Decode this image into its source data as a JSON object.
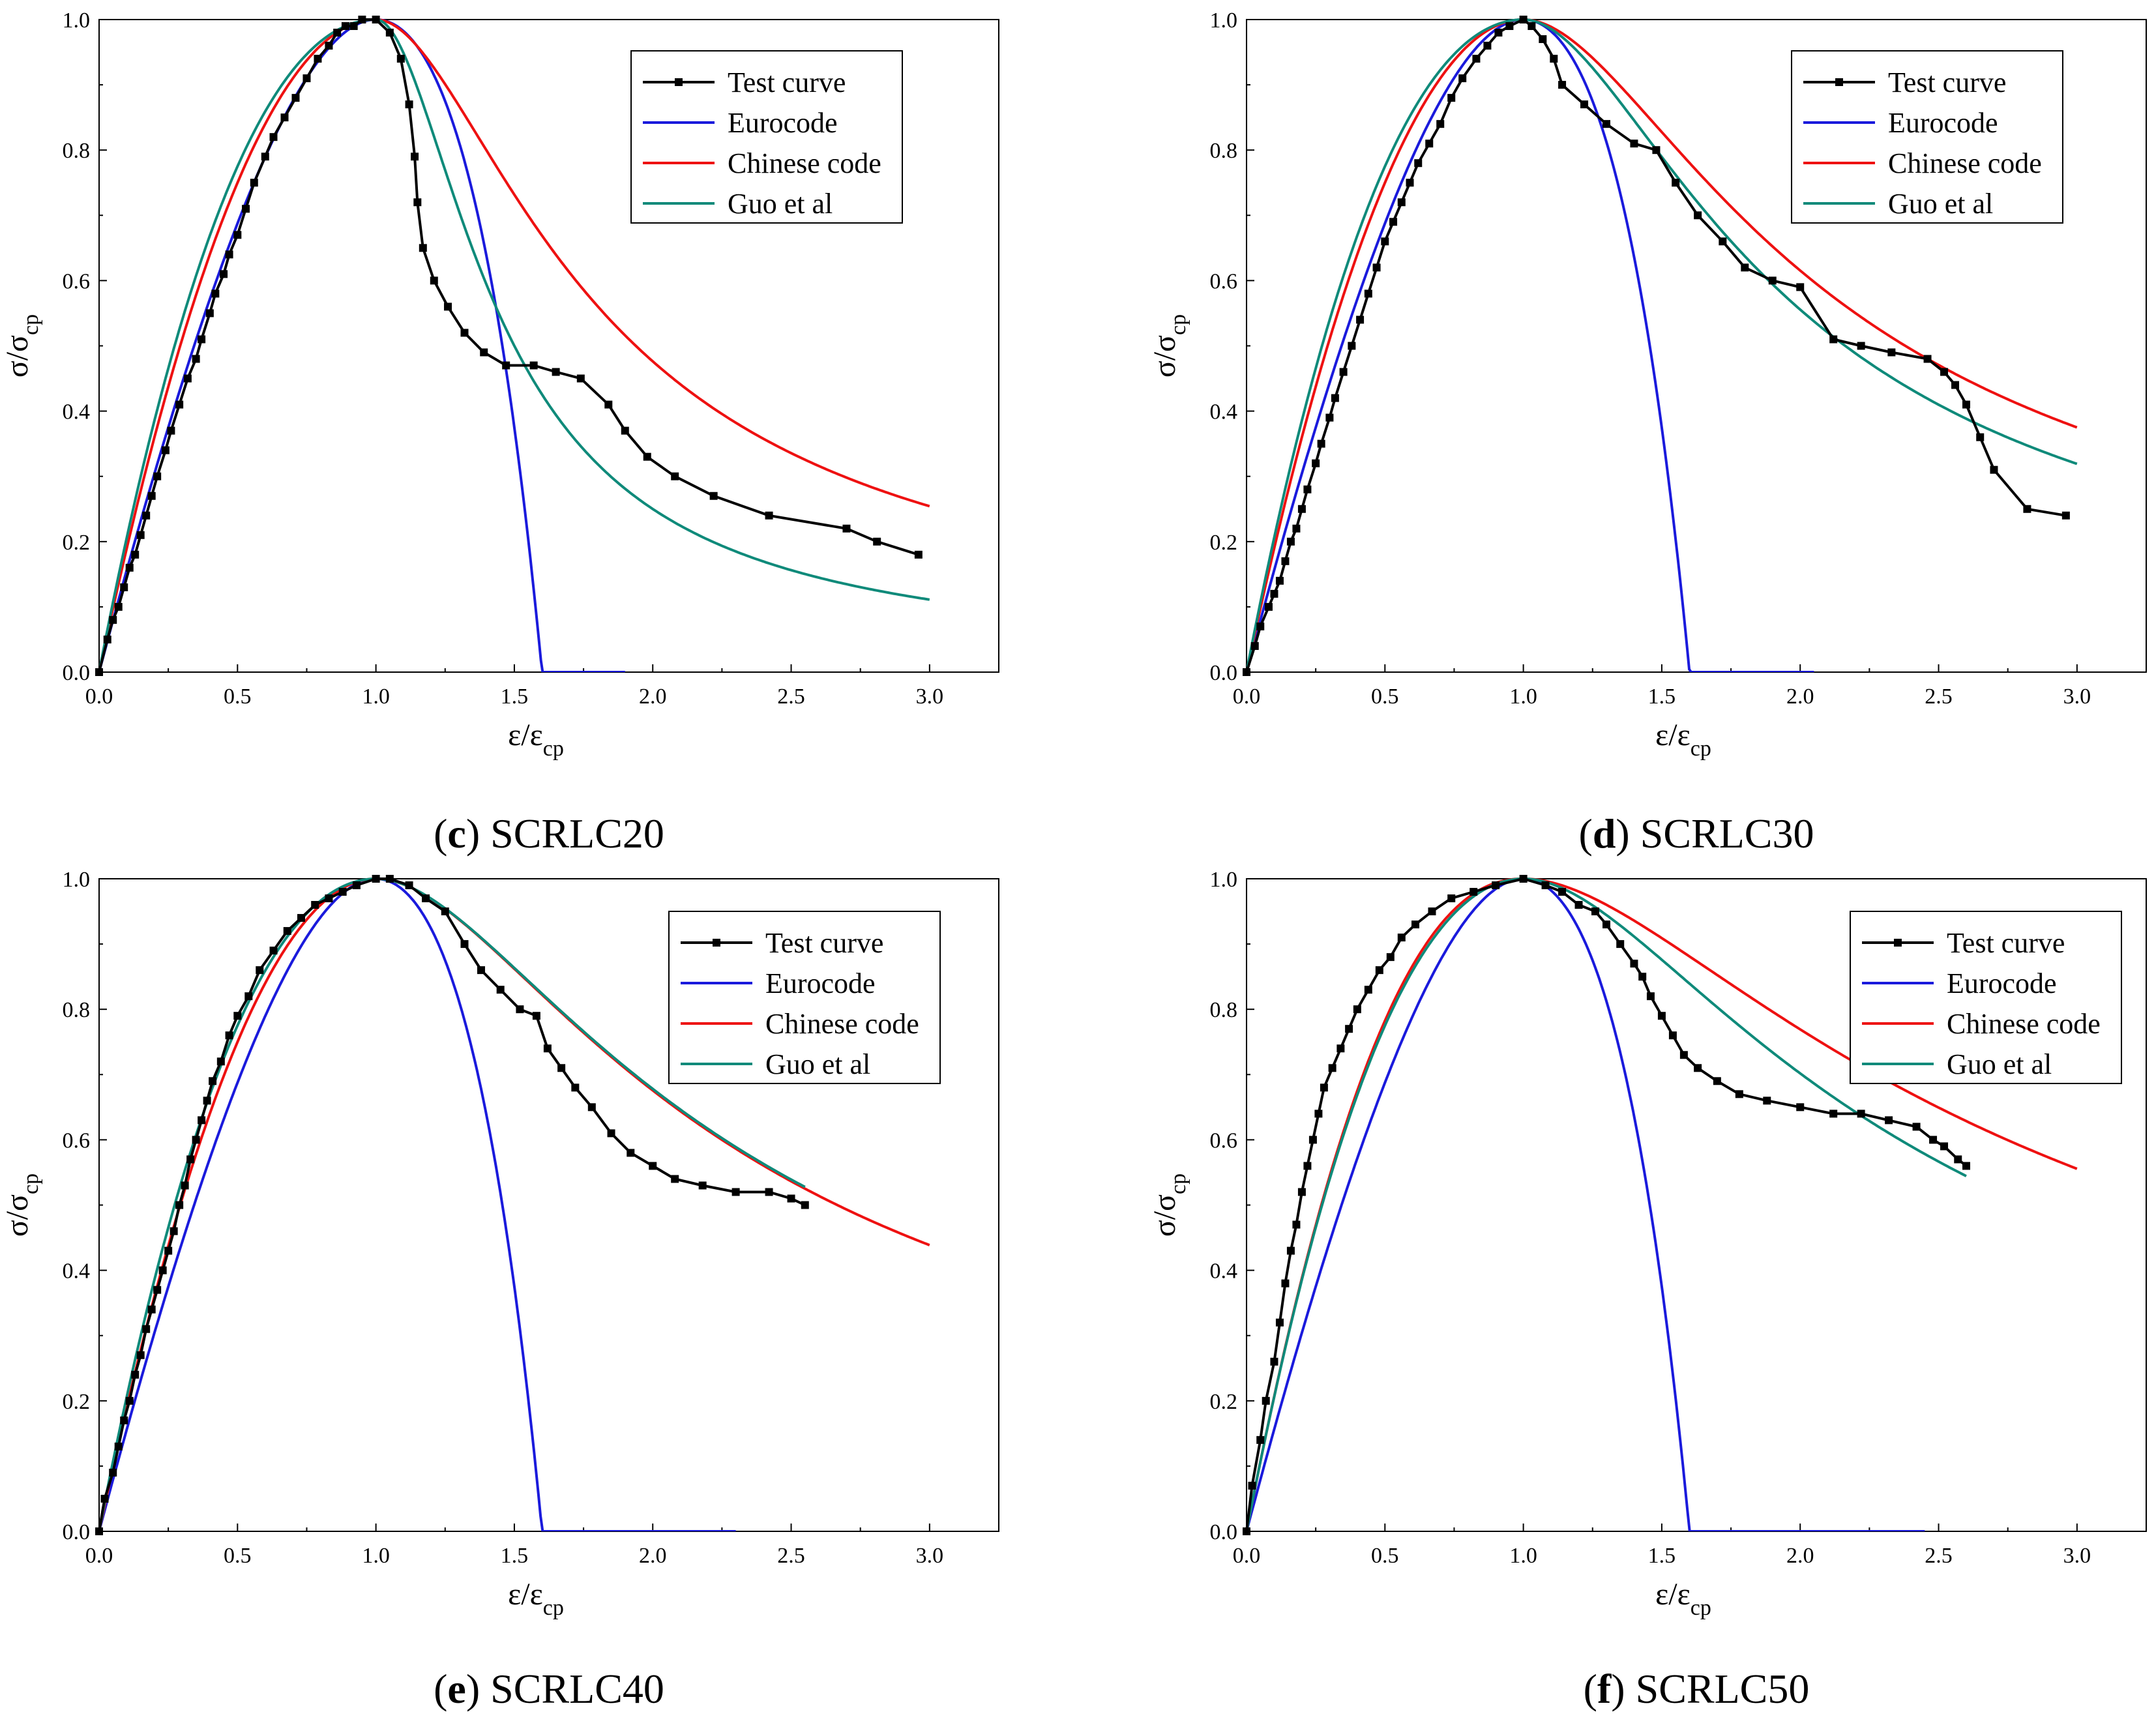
{
  "chart_data": [
    {
      "type": "line",
      "panel": "c",
      "caption_label": "c",
      "caption_text": " SCRLC20",
      "xlabel": "ε/ε",
      "xlabel_sub": "cp",
      "ylabel": "σ/σ",
      "ylabel_sub": "cp",
      "xlim": [
        0,
        3.25
      ],
      "ylim": [
        0,
        1.0
      ],
      "xticks": [
        "0.0",
        "0.5",
        "1.0",
        "1.5",
        "2.0",
        "2.5",
        "3.0"
      ],
      "yticks": [
        "0.0",
        "0.2",
        "0.4",
        "0.6",
        "0.8",
        "1.0"
      ],
      "legend": [
        "Test curve",
        "Eurocode",
        "Chinese code",
        "Guo  et al"
      ],
      "legend_position": "top-right",
      "model_params": {
        "k": 1.6,
        "n_cn": 2.0,
        "alpha_cn": 2.2,
        "alpha_guo": 6.0
      },
      "x_end": {
        "eurocode": 1.9,
        "chinese": 3.0,
        "guo": 3.0
      },
      "test_curve": [
        [
          0,
          0
        ],
        [
          0.03,
          0.05
        ],
        [
          0.05,
          0.08
        ],
        [
          0.07,
          0.1
        ],
        [
          0.09,
          0.13
        ],
        [
          0.11,
          0.16
        ],
        [
          0.13,
          0.18
        ],
        [
          0.15,
          0.21
        ],
        [
          0.17,
          0.24
        ],
        [
          0.19,
          0.27
        ],
        [
          0.21,
          0.3
        ],
        [
          0.24,
          0.34
        ],
        [
          0.26,
          0.37
        ],
        [
          0.29,
          0.41
        ],
        [
          0.32,
          0.45
        ],
        [
          0.35,
          0.48
        ],
        [
          0.37,
          0.51
        ],
        [
          0.4,
          0.55
        ],
        [
          0.42,
          0.58
        ],
        [
          0.45,
          0.61
        ],
        [
          0.47,
          0.64
        ],
        [
          0.5,
          0.67
        ],
        [
          0.53,
          0.71
        ],
        [
          0.56,
          0.75
        ],
        [
          0.6,
          0.79
        ],
        [
          0.63,
          0.82
        ],
        [
          0.67,
          0.85
        ],
        [
          0.71,
          0.88
        ],
        [
          0.75,
          0.91
        ],
        [
          0.79,
          0.94
        ],
        [
          0.83,
          0.96
        ],
        [
          0.86,
          0.98
        ],
        [
          0.89,
          0.99
        ],
        [
          0.92,
          0.99
        ],
        [
          0.95,
          1.0
        ],
        [
          1.0,
          1.0
        ],
        [
          1.05,
          0.98
        ],
        [
          1.09,
          0.94
        ],
        [
          1.12,
          0.87
        ],
        [
          1.14,
          0.79
        ],
        [
          1.15,
          0.72
        ],
        [
          1.17,
          0.65
        ],
        [
          1.21,
          0.6
        ],
        [
          1.26,
          0.56
        ],
        [
          1.32,
          0.52
        ],
        [
          1.39,
          0.49
        ],
        [
          1.47,
          0.47
        ],
        [
          1.57,
          0.47
        ],
        [
          1.65,
          0.46
        ],
        [
          1.74,
          0.45
        ],
        [
          1.84,
          0.41
        ],
        [
          1.9,
          0.37
        ],
        [
          1.98,
          0.33
        ],
        [
          2.08,
          0.3
        ],
        [
          2.22,
          0.27
        ],
        [
          2.42,
          0.24
        ],
        [
          2.7,
          0.22
        ],
        [
          2.81,
          0.2
        ],
        [
          2.96,
          0.18
        ]
      ]
    },
    {
      "type": "line",
      "panel": "d",
      "caption_label": "d",
      "caption_text": " SCRLC30",
      "xlabel": "ε/ε",
      "xlabel_sub": "cp",
      "ylabel": "σ/σ",
      "ylabel_sub": "cp",
      "xlim": [
        0,
        3.25
      ],
      "ylim": [
        0,
        1.0
      ],
      "xticks": [
        "0.0",
        "0.5",
        "1.0",
        "1.5",
        "2.0",
        "2.5",
        "3.0"
      ],
      "yticks": [
        "0.0",
        "0.2",
        "0.4",
        "0.6",
        "0.8",
        "1.0"
      ],
      "legend": [
        "Test curve",
        "Eurocode",
        "Chinese code",
        "Guo  et al"
      ],
      "legend_position": "top-right",
      "model_params": {
        "k": 1.6,
        "n_cn": 2.0,
        "alpha_cn": 1.25,
        "alpha_guo": 1.6
      },
      "x_end": {
        "eurocode": 2.05,
        "chinese": 3.0,
        "guo": 3.0
      },
      "test_curve": [
        [
          0,
          0
        ],
        [
          0.03,
          0.04
        ],
        [
          0.05,
          0.07
        ],
        [
          0.08,
          0.1
        ],
        [
          0.1,
          0.12
        ],
        [
          0.12,
          0.14
        ],
        [
          0.14,
          0.17
        ],
        [
          0.16,
          0.2
        ],
        [
          0.18,
          0.22
        ],
        [
          0.2,
          0.25
        ],
        [
          0.22,
          0.28
        ],
        [
          0.25,
          0.32
        ],
        [
          0.27,
          0.35
        ],
        [
          0.3,
          0.39
        ],
        [
          0.32,
          0.42
        ],
        [
          0.35,
          0.46
        ],
        [
          0.38,
          0.5
        ],
        [
          0.41,
          0.54
        ],
        [
          0.44,
          0.58
        ],
        [
          0.47,
          0.62
        ],
        [
          0.5,
          0.66
        ],
        [
          0.53,
          0.69
        ],
        [
          0.56,
          0.72
        ],
        [
          0.59,
          0.75
        ],
        [
          0.62,
          0.78
        ],
        [
          0.66,
          0.81
        ],
        [
          0.7,
          0.84
        ],
        [
          0.74,
          0.88
        ],
        [
          0.78,
          0.91
        ],
        [
          0.83,
          0.94
        ],
        [
          0.87,
          0.96
        ],
        [
          0.91,
          0.98
        ],
        [
          0.95,
          0.99
        ],
        [
          1.0,
          1.0
        ],
        [
          1.03,
          0.99
        ],
        [
          1.07,
          0.97
        ],
        [
          1.11,
          0.94
        ],
        [
          1.14,
          0.9
        ],
        [
          1.22,
          0.87
        ],
        [
          1.3,
          0.84
        ],
        [
          1.4,
          0.81
        ],
        [
          1.48,
          0.8
        ],
        [
          1.55,
          0.75
        ],
        [
          1.63,
          0.7
        ],
        [
          1.72,
          0.66
        ],
        [
          1.8,
          0.62
        ],
        [
          1.9,
          0.6
        ],
        [
          2.0,
          0.59
        ],
        [
          2.12,
          0.51
        ],
        [
          2.22,
          0.5
        ],
        [
          2.33,
          0.49
        ],
        [
          2.46,
          0.48
        ],
        [
          2.52,
          0.46
        ],
        [
          2.56,
          0.44
        ],
        [
          2.6,
          0.41
        ],
        [
          2.65,
          0.36
        ],
        [
          2.7,
          0.31
        ],
        [
          2.82,
          0.25
        ],
        [
          2.96,
          0.24
        ]
      ]
    },
    {
      "type": "line",
      "panel": "e",
      "caption_label": "e",
      "caption_text": " SCRLC40",
      "xlabel": "ε/ε",
      "xlabel_sub": "cp",
      "ylabel": "σ/σ",
      "ylabel_sub": "cp",
      "xlim": [
        0,
        3.25
      ],
      "ylim": [
        0,
        1.0
      ],
      "xticks": [
        "0.0",
        "0.5",
        "1.0",
        "1.5",
        "2.0",
        "2.5",
        "3.0"
      ],
      "yticks": [
        "0.0",
        "0.2",
        "0.4",
        "0.6",
        "0.8",
        "1.0"
      ],
      "legend": [
        "Test curve",
        "Eurocode",
        "Chinese code",
        "Guo  et al"
      ],
      "legend_position": "top-right",
      "model_params": {
        "k": 1.6,
        "n_cn": 2.0,
        "alpha_cn": 0.96,
        "alpha_guo": 0.95
      },
      "x_end": {
        "eurocode": 2.3,
        "chinese": 3.0,
        "guo": 2.55
      },
      "test_curve": [
        [
          0,
          0
        ],
        [
          0.02,
          0.05
        ],
        [
          0.05,
          0.09
        ],
        [
          0.07,
          0.13
        ],
        [
          0.09,
          0.17
        ],
        [
          0.11,
          0.2
        ],
        [
          0.13,
          0.24
        ],
        [
          0.15,
          0.27
        ],
        [
          0.17,
          0.31
        ],
        [
          0.19,
          0.34
        ],
        [
          0.21,
          0.37
        ],
        [
          0.23,
          0.4
        ],
        [
          0.25,
          0.43
        ],
        [
          0.27,
          0.46
        ],
        [
          0.29,
          0.5
        ],
        [
          0.31,
          0.53
        ],
        [
          0.33,
          0.57
        ],
        [
          0.35,
          0.6
        ],
        [
          0.37,
          0.63
        ],
        [
          0.39,
          0.66
        ],
        [
          0.41,
          0.69
        ],
        [
          0.44,
          0.72
        ],
        [
          0.47,
          0.76
        ],
        [
          0.5,
          0.79
        ],
        [
          0.54,
          0.82
        ],
        [
          0.58,
          0.86
        ],
        [
          0.63,
          0.89
        ],
        [
          0.68,
          0.92
        ],
        [
          0.73,
          0.94
        ],
        [
          0.78,
          0.96
        ],
        [
          0.83,
          0.97
        ],
        [
          0.88,
          0.98
        ],
        [
          0.93,
          0.99
        ],
        [
          1.0,
          1.0
        ],
        [
          1.05,
          1.0
        ],
        [
          1.12,
          0.99
        ],
        [
          1.18,
          0.97
        ],
        [
          1.25,
          0.95
        ],
        [
          1.32,
          0.9
        ],
        [
          1.38,
          0.86
        ],
        [
          1.45,
          0.83
        ],
        [
          1.52,
          0.8
        ],
        [
          1.58,
          0.79
        ],
        [
          1.62,
          0.74
        ],
        [
          1.67,
          0.71
        ],
        [
          1.72,
          0.68
        ],
        [
          1.78,
          0.65
        ],
        [
          1.85,
          0.61
        ],
        [
          1.92,
          0.58
        ],
        [
          2.0,
          0.56
        ],
        [
          2.08,
          0.54
        ],
        [
          2.18,
          0.53
        ],
        [
          2.3,
          0.52
        ],
        [
          2.42,
          0.52
        ],
        [
          2.5,
          0.51
        ],
        [
          2.55,
          0.5
        ]
      ]
    },
    {
      "type": "line",
      "panel": "f",
      "caption_label": "f",
      "caption_text": " SCRLC50",
      "xlabel": "ε/ε",
      "xlabel_sub": "cp",
      "ylabel": "σ/σ",
      "ylabel_sub": "cp",
      "xlim": [
        0,
        3.25
      ],
      "ylim": [
        0,
        1.0
      ],
      "xticks": [
        "0.0",
        "0.5",
        "1.0",
        "1.5",
        "2.0",
        "2.5",
        "3.0"
      ],
      "yticks": [
        "0.0",
        "0.2",
        "0.4",
        "0.6",
        "0.8",
        "1.0"
      ],
      "legend": [
        "Test curve",
        "Eurocode",
        "Chinese code",
        "Guo  et al"
      ],
      "legend_position": "top-right",
      "model_params": {
        "k": 1.6,
        "n_cn": 2.2,
        "alpha_cn": 0.6,
        "alpha_guo": 0.85
      },
      "x_end": {
        "eurocode": 2.45,
        "chinese": 3.0,
        "guo": 2.6
      },
      "test_curve": [
        [
          0,
          0
        ],
        [
          0.02,
          0.07
        ],
        [
          0.05,
          0.14
        ],
        [
          0.07,
          0.2
        ],
        [
          0.1,
          0.26
        ],
        [
          0.12,
          0.32
        ],
        [
          0.14,
          0.38
        ],
        [
          0.16,
          0.43
        ],
        [
          0.18,
          0.47
        ],
        [
          0.2,
          0.52
        ],
        [
          0.22,
          0.56
        ],
        [
          0.24,
          0.6
        ],
        [
          0.26,
          0.64
        ],
        [
          0.28,
          0.68
        ],
        [
          0.31,
          0.71
        ],
        [
          0.34,
          0.74
        ],
        [
          0.37,
          0.77
        ],
        [
          0.4,
          0.8
        ],
        [
          0.44,
          0.83
        ],
        [
          0.48,
          0.86
        ],
        [
          0.52,
          0.88
        ],
        [
          0.56,
          0.91
        ],
        [
          0.61,
          0.93
        ],
        [
          0.67,
          0.95
        ],
        [
          0.74,
          0.97
        ],
        [
          0.82,
          0.98
        ],
        [
          0.9,
          0.99
        ],
        [
          1.0,
          1.0
        ],
        [
          1.08,
          0.99
        ],
        [
          1.14,
          0.98
        ],
        [
          1.2,
          0.96
        ],
        [
          1.26,
          0.95
        ],
        [
          1.3,
          0.93
        ],
        [
          1.35,
          0.9
        ],
        [
          1.4,
          0.87
        ],
        [
          1.43,
          0.85
        ],
        [
          1.46,
          0.82
        ],
        [
          1.5,
          0.79
        ],
        [
          1.54,
          0.76
        ],
        [
          1.58,
          0.73
        ],
        [
          1.63,
          0.71
        ],
        [
          1.7,
          0.69
        ],
        [
          1.78,
          0.67
        ],
        [
          1.88,
          0.66
        ],
        [
          2.0,
          0.65
        ],
        [
          2.12,
          0.64
        ],
        [
          2.22,
          0.64
        ],
        [
          2.32,
          0.63
        ],
        [
          2.42,
          0.62
        ],
        [
          2.48,
          0.6
        ],
        [
          2.52,
          0.59
        ],
        [
          2.57,
          0.57
        ],
        [
          2.6,
          0.56
        ]
      ]
    }
  ],
  "colors": {
    "test": "#000000",
    "eurocode": "#1a1adc",
    "chinese": "#ee1111",
    "guo": "#0f8a7a",
    "frame": "#000000"
  }
}
